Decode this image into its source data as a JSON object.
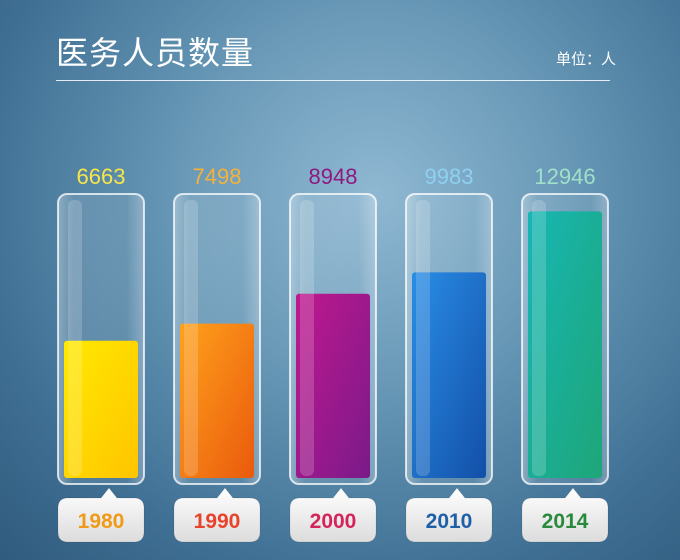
{
  "header": {
    "title": "医务人员数量",
    "unit_label": "单位：人"
  },
  "chart_data": {
    "type": "bar",
    "title": "医务人员数量",
    "unit": "单位：人",
    "categories": [
      "1980",
      "1990",
      "2000",
      "2010",
      "2014"
    ],
    "values": [
      6663,
      7498,
      8948,
      9983,
      12946
    ],
    "value_labels": [
      "6663",
      "7498",
      "8948",
      "9983",
      "12946"
    ],
    "ylim": [
      0,
      13500
    ],
    "grid": false,
    "legend": "none",
    "colors": [
      {
        "top": "#ffea00",
        "bottom": "#ffc400",
        "label": "#f7e64a",
        "year": "#f09a1a"
      },
      {
        "top": "#ffa21c",
        "bottom": "#ea5a0c",
        "label": "#f5b23a",
        "year": "#e8432a"
      },
      {
        "top": "#c0188e",
        "bottom": "#7a1a8a",
        "label": "#8e1a80",
        "year": "#d4255a"
      },
      {
        "top": "#2a8ee6",
        "bottom": "#124fa8",
        "label": "#8fd0f0",
        "year": "#1f5fa8"
      },
      {
        "top": "#17b6b4",
        "bottom": "#1ea678",
        "label": "#9ee0c8",
        "year": "#2a8a3c"
      }
    ]
  }
}
